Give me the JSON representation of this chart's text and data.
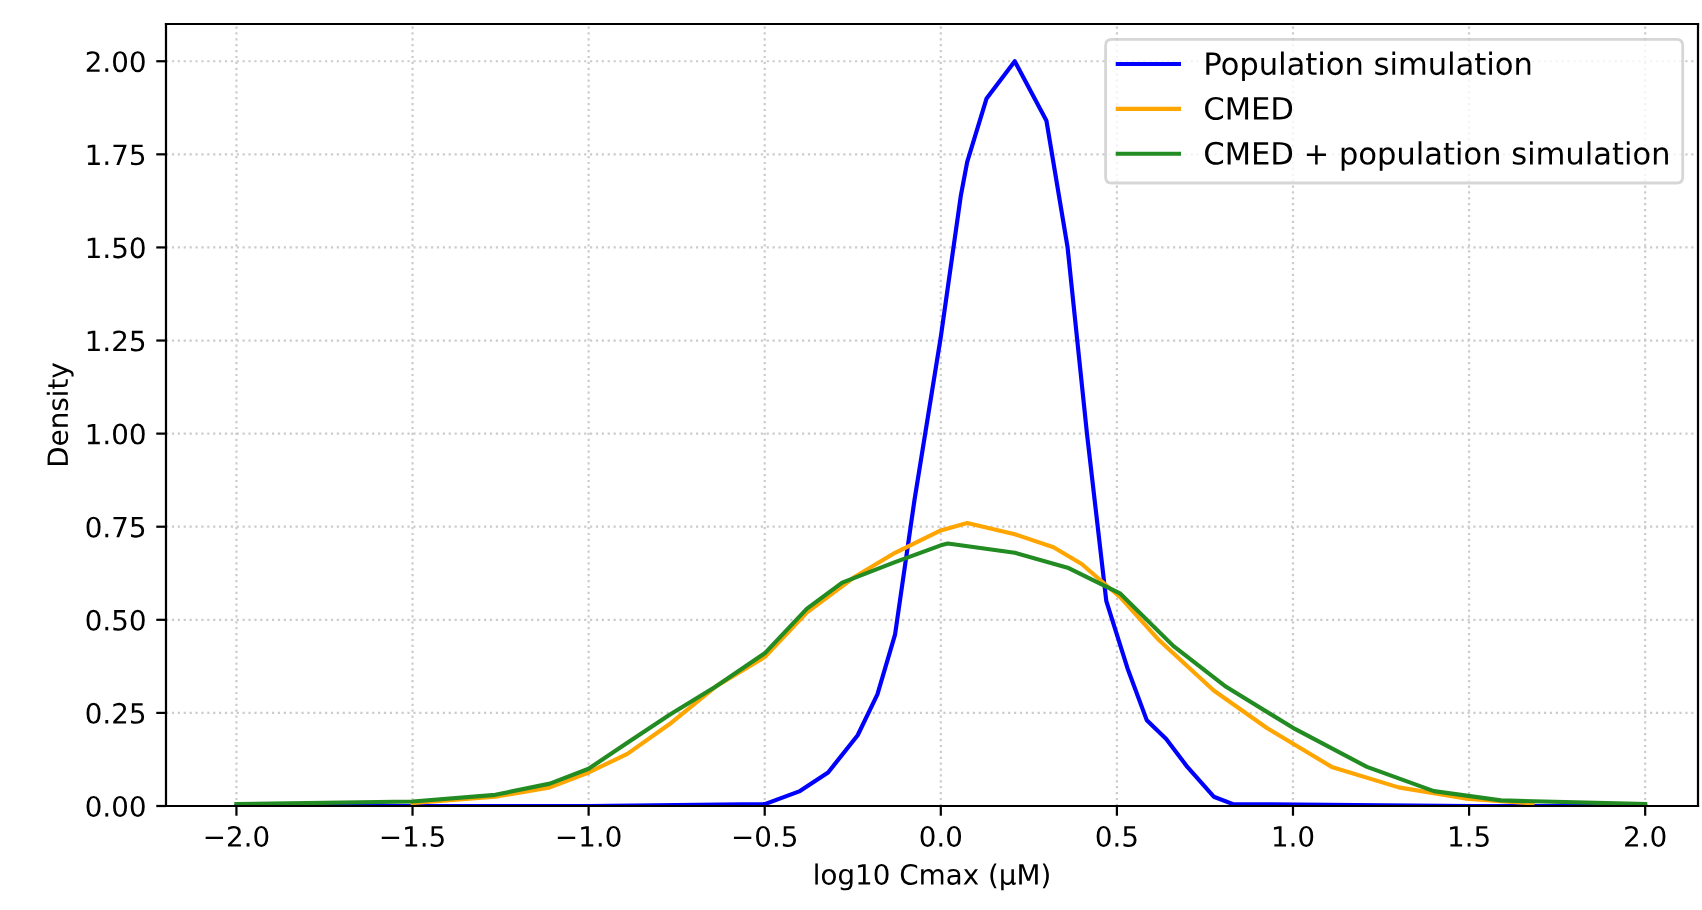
{
  "chart_data": {
    "type": "line",
    "xlabel": "log10 Cmax (µM)",
    "ylabel": "Density",
    "series": [
      {
        "name": "Population simulation",
        "color": "#0000ff",
        "x": [
          -2.0,
          -1.0,
          -0.5,
          -0.4,
          -0.32,
          -0.236,
          -0.18,
          -0.13,
          -0.075,
          0.0,
          0.057,
          0.075,
          0.13,
          0.21,
          0.3,
          0.36,
          0.415,
          0.47,
          0.53,
          0.585,
          0.64,
          0.7,
          0.775,
          0.83,
          1.5,
          2.0
        ],
        "values": [
          0,
          0,
          0.005,
          0.04,
          0.09,
          0.19,
          0.3,
          0.46,
          0.82,
          1.26,
          1.64,
          1.73,
          1.9,
          2.0,
          1.84,
          1.5,
          1.0,
          0.55,
          0.37,
          0.23,
          0.18,
          0.105,
          0.025,
          0.005,
          0,
          0
        ]
      },
      {
        "name": "CMED",
        "color": "#ffa500",
        "x": [
          -1.5,
          -1.265,
          -1.11,
          -1.0,
          -0.89,
          -0.77,
          -0.64,
          -0.5,
          -0.38,
          -0.245,
          -0.13,
          0.0,
          0.075,
          0.21,
          0.32,
          0.4,
          0.51,
          0.62,
          0.775,
          0.925,
          1.11,
          1.3,
          1.49,
          1.68
        ],
        "values": [
          0.008,
          0.025,
          0.05,
          0.09,
          0.14,
          0.22,
          0.32,
          0.4,
          0.52,
          0.615,
          0.68,
          0.74,
          0.76,
          0.73,
          0.695,
          0.65,
          0.56,
          0.445,
          0.31,
          0.21,
          0.105,
          0.05,
          0.02,
          0.007
        ]
      },
      {
        "name": "CMED + population simulation",
        "color": "#228b22",
        "x": [
          -2.0,
          -1.5,
          -1.265,
          -1.11,
          -1.0,
          -0.89,
          -0.77,
          -0.64,
          -0.5,
          -0.38,
          -0.28,
          -0.13,
          0.0,
          0.02,
          0.21,
          0.36,
          0.51,
          0.66,
          0.81,
          1.0,
          1.21,
          1.4,
          1.59,
          2.0
        ],
        "values": [
          0.005,
          0.012,
          0.03,
          0.06,
          0.1,
          0.17,
          0.245,
          0.32,
          0.41,
          0.53,
          0.6,
          0.655,
          0.7,
          0.705,
          0.68,
          0.64,
          0.57,
          0.43,
          0.32,
          0.21,
          0.105,
          0.04,
          0.015,
          0.005
        ]
      }
    ],
    "xlim": [
      -2.2,
      2.15
    ],
    "ylim": [
      0,
      2.1
    ],
    "xticks": [
      {
        "value": -2.0,
        "label": "−2.0"
      },
      {
        "value": -1.5,
        "label": "−1.5"
      },
      {
        "value": -1.0,
        "label": "−1.0"
      },
      {
        "value": -0.5,
        "label": "−0.5"
      },
      {
        "value": 0.0,
        "label": "0.0"
      },
      {
        "value": 0.5,
        "label": "0.5"
      },
      {
        "value": 1.0,
        "label": "1.0"
      },
      {
        "value": 1.5,
        "label": "1.5"
      },
      {
        "value": 2.0,
        "label": "2.0"
      }
    ],
    "yticks": [
      {
        "value": 0,
        "label": "0.00"
      },
      {
        "value": 0.25,
        "label": "0.25"
      },
      {
        "value": 0.5,
        "label": "0.50"
      },
      {
        "value": 0.75,
        "label": "0.75"
      },
      {
        "value": 1.0,
        "label": "1.00"
      },
      {
        "value": 1.25,
        "label": "1.25"
      },
      {
        "value": 1.5,
        "label": "1.50"
      },
      {
        "value": 1.75,
        "label": "1.75"
      },
      {
        "value": 2.0,
        "label": "2.00"
      }
    ],
    "grid": true,
    "legend": "top right",
    "marker": "none",
    "line_style": "solid"
  }
}
